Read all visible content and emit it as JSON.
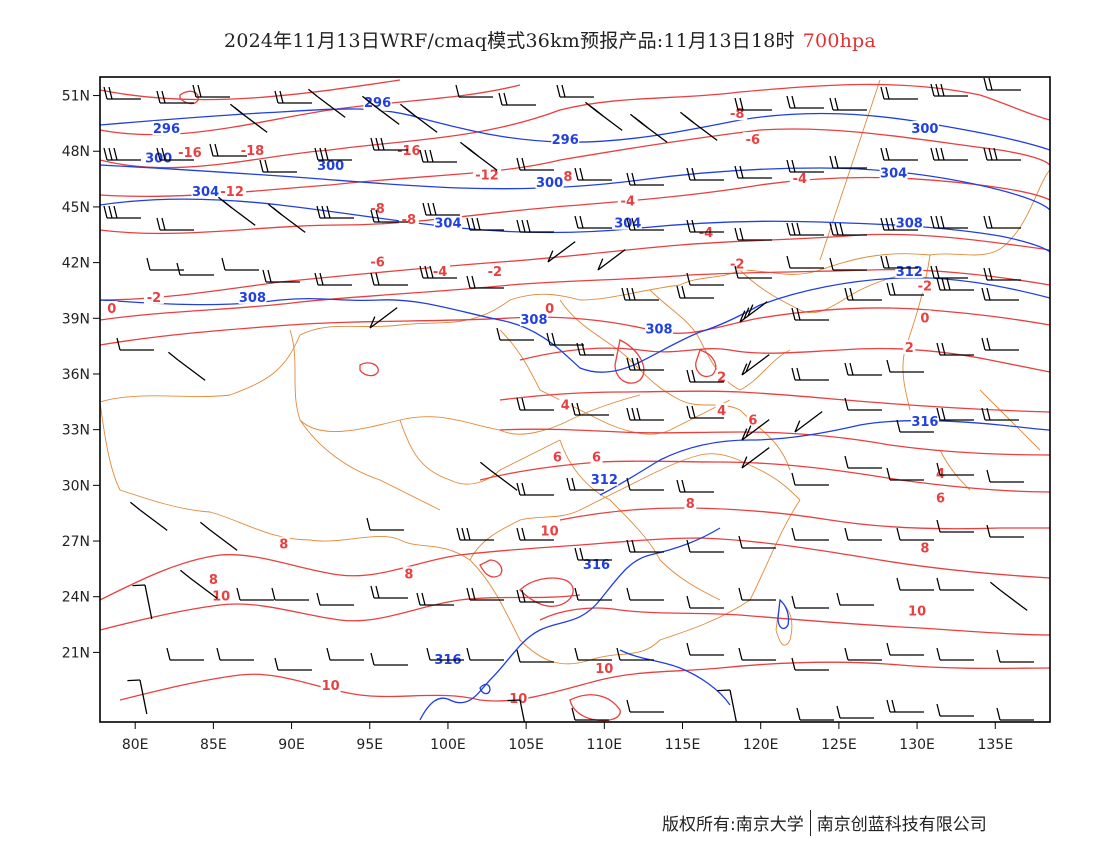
{
  "title": {
    "main": "2024年11月13日WRF/cmaq模式36km预报产品:11月13日18时",
    "level": "700hpa"
  },
  "axes": {
    "x_ticks": [
      "80E",
      "85E",
      "90E",
      "95E",
      "100E",
      "105E",
      "110E",
      "115E",
      "120E",
      "125E",
      "130E",
      "135E"
    ],
    "y_ticks": [
      "51N",
      "48N",
      "45N",
      "42N",
      "39N",
      "36N",
      "33N",
      "30N",
      "27N",
      "24N",
      "21N"
    ]
  },
  "contour_labels": {
    "temperature": [
      {
        "text": "-16",
        "lon": 95.5,
        "lat": 50.5
      },
      {
        "text": "-16",
        "lon": 83.5,
        "lat": 47.9
      },
      {
        "text": "-18",
        "lon": 87.5,
        "lat": 48.0
      },
      {
        "text": "-16",
        "lon": 97.5,
        "lat": 48.0
      },
      {
        "text": "-12",
        "lon": 102.5,
        "lat": 46.7
      },
      {
        "text": "-12",
        "lon": 86.2,
        "lat": 45.8
      },
      {
        "text": "-8",
        "lon": 107.5,
        "lat": 46.6
      },
      {
        "text": "-8",
        "lon": 95.5,
        "lat": 44.9
      },
      {
        "text": "-8",
        "lon": 97.5,
        "lat": 44.3
      },
      {
        "text": "-6",
        "lon": 95.5,
        "lat": 42.0
      },
      {
        "text": "-4",
        "lon": 99.5,
        "lat": 41.5
      },
      {
        "text": "-2",
        "lon": 103.0,
        "lat": 41.5
      },
      {
        "text": "-2",
        "lon": 81.2,
        "lat": 40.1
      },
      {
        "text": "0",
        "lon": 78.5,
        "lat": 39.5
      },
      {
        "text": "0",
        "lon": 106.5,
        "lat": 39.5
      },
      {
        "text": "-4",
        "lon": 111.5,
        "lat": 45.3
      },
      {
        "text": "-4",
        "lon": 116.5,
        "lat": 43.6
      },
      {
        "text": "-2",
        "lon": 118.5,
        "lat": 41.9
      },
      {
        "text": "-8",
        "lon": 118.5,
        "lat": 50.0
      },
      {
        "text": "-6",
        "lon": 119.5,
        "lat": 48.6
      },
      {
        "text": "-4",
        "lon": 122.5,
        "lat": 46.5
      },
      {
        "text": "-2",
        "lon": 130.5,
        "lat": 40.7
      },
      {
        "text": "0",
        "lon": 130.5,
        "lat": 39.0
      },
      {
        "text": "2",
        "lon": 129.5,
        "lat": 37.4
      },
      {
        "text": "2",
        "lon": 117.5,
        "lat": 35.8
      },
      {
        "text": "4",
        "lon": 117.5,
        "lat": 34.0
      },
      {
        "text": "4",
        "lon": 107.5,
        "lat": 34.3
      },
      {
        "text": "6",
        "lon": 119.5,
        "lat": 33.5
      },
      {
        "text": "6",
        "lon": 107.0,
        "lat": 31.5
      },
      {
        "text": "6",
        "lon": 109.5,
        "lat": 31.5
      },
      {
        "text": "4",
        "lon": 131.5,
        "lat": 30.6
      },
      {
        "text": "6",
        "lon": 131.5,
        "lat": 29.3
      },
      {
        "text": "8",
        "lon": 115.5,
        "lat": 29.0
      },
      {
        "text": "8",
        "lon": 130.5,
        "lat": 26.6
      },
      {
        "text": "8",
        "lon": 89.5,
        "lat": 26.8
      },
      {
        "text": "8",
        "lon": 85.0,
        "lat": 24.9
      },
      {
        "text": "8",
        "lon": 97.5,
        "lat": 25.2
      },
      {
        "text": "10",
        "lon": 85.5,
        "lat": 24.0
      },
      {
        "text": "10",
        "lon": 106.5,
        "lat": 27.5
      },
      {
        "text": "10",
        "lon": 130.0,
        "lat": 23.2
      },
      {
        "text": "10",
        "lon": 110.0,
        "lat": 20.1
      },
      {
        "text": "10",
        "lon": 92.5,
        "lat": 19.2
      },
      {
        "text": "10",
        "lon": 104.5,
        "lat": 18.5
      }
    ],
    "height": [
      {
        "text": "296",
        "lon": 95.5,
        "lat": 50.6
      },
      {
        "text": "296",
        "lon": 82.0,
        "lat": 49.2
      },
      {
        "text": "296",
        "lon": 107.5,
        "lat": 48.6
      },
      {
        "text": "300",
        "lon": 81.5,
        "lat": 47.6
      },
      {
        "text": "300",
        "lon": 92.5,
        "lat": 47.2
      },
      {
        "text": "300",
        "lon": 106.5,
        "lat": 46.3
      },
      {
        "text": "300",
        "lon": 130.5,
        "lat": 49.2
      },
      {
        "text": "304",
        "lon": 84.5,
        "lat": 45.8
      },
      {
        "text": "304",
        "lon": 100.0,
        "lat": 44.1
      },
      {
        "text": "304",
        "lon": 111.5,
        "lat": 44.1
      },
      {
        "text": "304",
        "lon": 128.5,
        "lat": 46.8
      },
      {
        "text": "308",
        "lon": 87.5,
        "lat": 40.1
      },
      {
        "text": "308",
        "lon": 129.5,
        "lat": 44.1
      },
      {
        "text": "308",
        "lon": 105.5,
        "lat": 38.9
      },
      {
        "text": "308",
        "lon": 113.5,
        "lat": 38.4
      },
      {
        "text": "312",
        "lon": 129.5,
        "lat": 41.5
      },
      {
        "text": "312",
        "lon": 110.0,
        "lat": 30.3
      },
      {
        "text": "316",
        "lon": 130.5,
        "lat": 33.4
      },
      {
        "text": "316",
        "lon": 109.5,
        "lat": 25.7
      },
      {
        "text": "316",
        "lon": 100.0,
        "lat": 20.6
      }
    ]
  },
  "colors": {
    "temperature": "#e84040",
    "height": "#2040e0",
    "border": "#e08a3a",
    "wind": "#000000",
    "frame": "#000000"
  },
  "copyright": {
    "left": "版权所有:南京大学",
    "right": "南京创蓝科技有限公司"
  }
}
